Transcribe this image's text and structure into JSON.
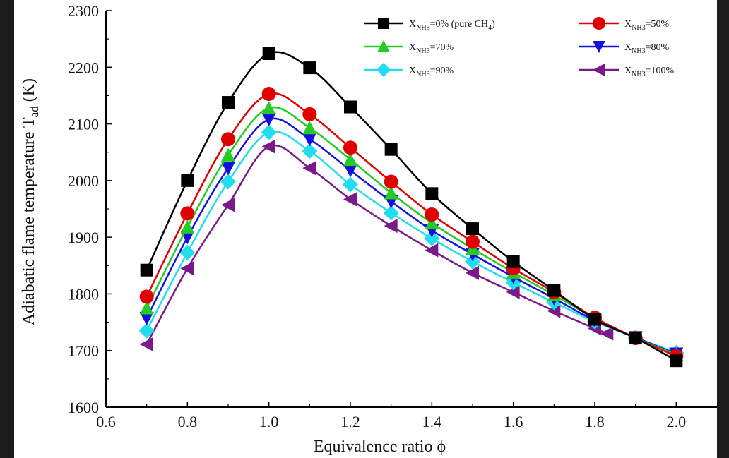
{
  "chart_data": {
    "type": "line",
    "xlabel": "Equivalence ratio ϕ",
    "ylabel": "Adiabatic flame temperature T",
    "ylabel_sub": "ad",
    "ylabel_unit": " (K)",
    "xlim": [
      0.6,
      2.1
    ],
    "ylim": [
      1600,
      2300
    ],
    "xticks": [
      "0.6",
      "0.8",
      "1.0",
      "1.2",
      "1.4",
      "1.6",
      "1.8",
      "2.0"
    ],
    "yticks": [
      "1600",
      "1700",
      "1800",
      "1900",
      "2000",
      "2100",
      "2200",
      "2300"
    ],
    "legend_position": "top-right",
    "series": [
      {
        "name": "X",
        "sub": "NH3",
        "suffix": "=0% (pure CH",
        "sub2": "4",
        "suffix2": ")",
        "color": "#000000",
        "marker": "square",
        "x": [
          0.7,
          0.8,
          0.9,
          1.0,
          1.1,
          1.2,
          1.3,
          1.4,
          1.5,
          1.6,
          1.7,
          1.8,
          1.9,
          2.0
        ],
        "y": [
          1842,
          2000,
          2138,
          2224,
          2199,
          2130,
          2055,
          1977,
          1915,
          1857,
          1806,
          1755,
          1722,
          1682
        ]
      },
      {
        "name": "X",
        "sub": "NH3",
        "suffix": "=50%",
        "color": "#e00000",
        "marker": "circle",
        "x": [
          0.7,
          0.8,
          0.9,
          1.0,
          1.1,
          1.2,
          1.3,
          1.4,
          1.5,
          1.6,
          1.7,
          1.8,
          1.9,
          2.0
        ],
        "y": [
          1795,
          1942,
          2073,
          2153,
          2117,
          2058,
          1998,
          1940,
          1892,
          1845,
          1803,
          1758,
          1722,
          1690
        ]
      },
      {
        "name": "X",
        "sub": "NH3",
        "suffix": "=70%",
        "color": "#22cc22",
        "marker": "triangle-up",
        "x": [
          0.7,
          0.8,
          0.9,
          1.0,
          1.1,
          1.2,
          1.3,
          1.4,
          1.5,
          1.6,
          1.7,
          1.8,
          1.9,
          2.0
        ],
        "y": [
          1775,
          1918,
          2045,
          2128,
          2093,
          2037,
          1978,
          1925,
          1880,
          1838,
          1798,
          1757,
          1722,
          1693
        ]
      },
      {
        "name": "X",
        "sub": "NH3",
        "suffix": "=80%",
        "color": "#1010e0",
        "marker": "triangle-down",
        "x": [
          0.7,
          0.8,
          0.9,
          1.0,
          1.1,
          1.2,
          1.3,
          1.4,
          1.5,
          1.6,
          1.7,
          1.8,
          1.9,
          2.0
        ],
        "y": [
          1757,
          1900,
          2022,
          2108,
          2073,
          2018,
          1963,
          1912,
          1870,
          1830,
          1792,
          1753,
          1723,
          1694
        ]
      },
      {
        "name": "X",
        "sub": "NH3",
        "suffix": "=90%",
        "color": "#22ddee",
        "marker": "diamond",
        "x": [
          0.7,
          0.8,
          0.9,
          1.0,
          1.1,
          1.2,
          1.3,
          1.4,
          1.5,
          1.6,
          1.7,
          1.8,
          1.9,
          2.0
        ],
        "y": [
          1735,
          1873,
          1998,
          2085,
          2052,
          1993,
          1943,
          1898,
          1857,
          1820,
          1785,
          1751,
          1723,
          1696
        ]
      },
      {
        "name": "X",
        "sub": "NH3",
        "suffix": "=100%",
        "color": "#7a1a8a",
        "marker": "triangle-left",
        "x": [
          0.7,
          0.8,
          0.9,
          1.0,
          1.1,
          1.2,
          1.3,
          1.4,
          1.5,
          1.6,
          1.7,
          1.8,
          1.83
        ],
        "y": [
          1711,
          1845,
          1957,
          2060,
          2022,
          1967,
          1920,
          1877,
          1837,
          1803,
          1770,
          1739,
          1730
        ]
      }
    ]
  }
}
